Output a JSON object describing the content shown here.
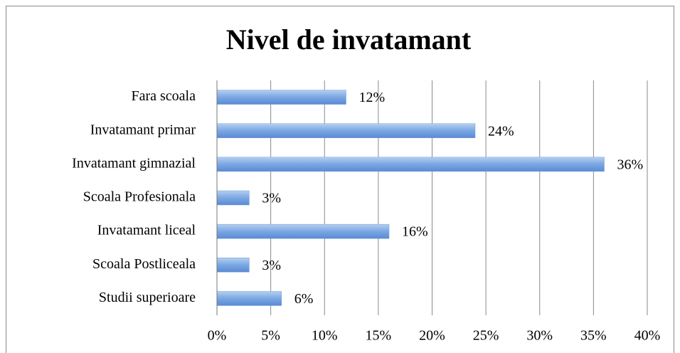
{
  "chart_data": {
    "type": "bar",
    "orientation": "horizontal",
    "title": "Nivel de invatamant",
    "categories": [
      "Fara scoala",
      "Invatamant primar",
      "Invatamant gimnazial",
      "Scoala Profesionala",
      "Invatamant liceal",
      "Scoala Postliceala",
      "Studii superioare"
    ],
    "values": [
      12,
      24,
      36,
      3,
      16,
      3,
      6
    ],
    "value_labels": [
      "12%",
      "24%",
      "36%",
      "3%",
      "16%",
      "3%",
      "6%"
    ],
    "color": "#6f9fe0",
    "xlim": [
      0,
      40
    ],
    "xticks": [
      {
        "value": 0,
        "label": "0%"
      },
      {
        "value": 5,
        "label": "5%"
      },
      {
        "value": 10,
        "label": "10%"
      },
      {
        "value": 15,
        "label": "15%"
      },
      {
        "value": 20,
        "label": "20%"
      },
      {
        "value": 25,
        "label": "25%"
      },
      {
        "value": 30,
        "label": "30%"
      },
      {
        "value": 35,
        "label": "35%"
      },
      {
        "value": 40,
        "label": "40%"
      }
    ],
    "grid": true
  }
}
